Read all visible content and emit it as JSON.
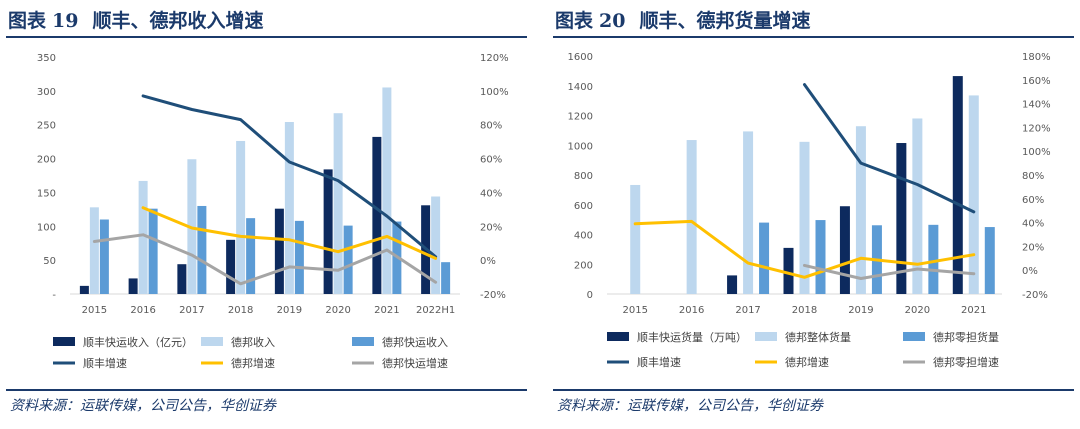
{
  "left": {
    "title_label": "图表",
    "title_num": "19",
    "title_text": "顺丰、德邦收入增速",
    "source": "资料来源：运联传媒，公司公告，华创证券"
  },
  "right": {
    "title_label": "图表",
    "title_num": "20",
    "title_text": "顺丰、德邦货量增速",
    "source": "资料来源：运联传媒，公司公告，华创证券"
  },
  "colors": {
    "dark_navy": "#0d2a5e",
    "light_blue": "#bdd7ee",
    "mid_blue": "#5b9bd5",
    "line_navy": "#1f4e79",
    "yellow": "#ffc000",
    "grey": "#a5a5a5"
  },
  "chart_data": [
    {
      "type": "bar",
      "categories": [
        "2015",
        "2016",
        "2017",
        "2018",
        "2019",
        "2020",
        "2021",
        "2022H1"
      ],
      "y_left": {
        "min": 0,
        "max": 350,
        "ticks": [
          "-",
          "50",
          "100",
          "150",
          "200",
          "250",
          "300",
          "350"
        ]
      },
      "y_right": {
        "min": -20,
        "max": 120,
        "ticks": [
          "-20%",
          "0%",
          "20%",
          "40%",
          "60%",
          "80%",
          "100%",
          "120%"
        ]
      },
      "bar_series": [
        {
          "name": "顺丰快运收入（亿元）",
          "color": "#0d2a5e",
          "values": [
            12,
            23,
            44,
            80,
            126,
            184,
            232,
            131
          ]
        },
        {
          "name": "德邦收入",
          "color": "#bdd7ee",
          "values": [
            128,
            167,
            199,
            226,
            254,
            267,
            305,
            144
          ]
        },
        {
          "name": "德邦快运收入",
          "color": "#5b9bd5",
          "values": [
            110,
            126,
            130,
            112,
            108,
            101,
            107,
            47
          ]
        }
      ],
      "line_series": [
        {
          "name": "顺丰增速",
          "color": "#1f4e79",
          "values": [
            null,
            97,
            89,
            83,
            58,
            47,
            26,
            2
          ]
        },
        {
          "name": "德邦增速",
          "color": "#ffc000",
          "values": [
            null,
            31,
            19,
            14,
            12,
            5,
            14,
            1
          ]
        },
        {
          "name": "德邦快运增速",
          "color": "#a5a5a5",
          "values": [
            11,
            15,
            3,
            -14,
            -4,
            -6,
            6,
            -13
          ]
        }
      ],
      "legend": [
        "顺丰快运收入（亿元）",
        "德邦收入",
        "德邦快运收入",
        "顺丰增速",
        "德邦增速",
        "德邦快运增速"
      ]
    },
    {
      "type": "bar",
      "categories": [
        "2015",
        "2016",
        "2017",
        "2018",
        "2019",
        "2020",
        "2021"
      ],
      "y_left": {
        "min": 0,
        "max": 1600,
        "ticks": [
          "0",
          "200",
          "400",
          "600",
          "800",
          "1000",
          "1200",
          "1400",
          "1600"
        ]
      },
      "y_right": {
        "min": -20,
        "max": 180,
        "ticks": [
          "-20%",
          "0%",
          "20%",
          "40%",
          "60%",
          "80%",
          "100%",
          "120%",
          "140%",
          "160%",
          "180%"
        ]
      },
      "bar_series": [
        {
          "name": "顺丰快运货量（万吨）",
          "color": "#0d2a5e",
          "values": [
            null,
            null,
            125,
            310,
            590,
            1015,
            1465
          ]
        },
        {
          "name": "德邦整体货量",
          "color": "#bdd7ee",
          "values": [
            733,
            1035,
            1093,
            1023,
            1128,
            1180,
            1335
          ]
        },
        {
          "name": "德邦零担货量",
          "color": "#5b9bd5",
          "values": [
            null,
            null,
            480,
            497,
            462,
            465,
            450
          ]
        }
      ],
      "line_series": [
        {
          "name": "顺丰增速",
          "color": "#1f4e79",
          "values": [
            null,
            null,
            null,
            156,
            90,
            72,
            49
          ]
        },
        {
          "name": "德邦增速",
          "color": "#ffc000",
          "values": [
            39,
            41,
            6,
            -6,
            10,
            5,
            13
          ]
        },
        {
          "name": "德邦零担增速",
          "color": "#a5a5a5",
          "values": [
            null,
            null,
            null,
            4,
            -7,
            1,
            -3
          ]
        }
      ],
      "legend": [
        "顺丰快运货量（万吨）",
        "德邦整体货量",
        "德邦零担货量",
        "顺丰增速",
        "德邦增速",
        "德邦零担增速"
      ]
    }
  ]
}
